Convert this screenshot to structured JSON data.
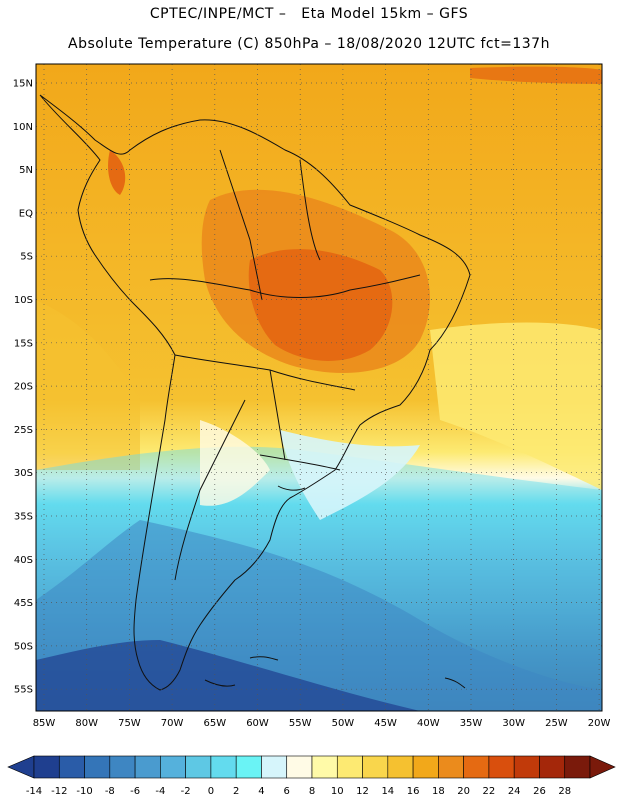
{
  "header": {
    "line1": "CPTEC/INPE/MCT –   Eta Model 15km – GFS",
    "line2": "Absolute Temperature (C) 850hPa – 18/08/2020 12UTC fct=137h"
  },
  "map": {
    "lat_labels": [
      "15N",
      "10N",
      "5N",
      "EQ",
      "5S",
      "10S",
      "15S",
      "20S",
      "25S",
      "30S",
      "35S",
      "40S",
      "45S",
      "50S",
      "55S"
    ],
    "lon_labels": [
      "85W",
      "80W",
      "75W",
      "70W",
      "65W",
      "60W",
      "55W",
      "50W",
      "45W",
      "40W",
      "35W",
      "30W",
      "25W",
      "20W"
    ]
  },
  "colorbar": {
    "labels": [
      "-14",
      "-12",
      "-10",
      "-8",
      "-6",
      "-4",
      "-2",
      "0",
      "2",
      "4",
      "6",
      "8",
      "10",
      "12",
      "14",
      "16",
      "18",
      "20",
      "22",
      "24",
      "26",
      "28"
    ],
    "colors": [
      "#1f3f8f",
      "#2a5ca8",
      "#3475b8",
      "#3e86c2",
      "#4a9bcf",
      "#55b1dc",
      "#5ec8e4",
      "#63dbee",
      "#6af3f5",
      "#d6f5fb",
      "#fffbe6",
      "#fffaa8",
      "#fdea72",
      "#f9d64c",
      "#f5c130",
      "#f2a81a",
      "#eb8b1c",
      "#e56a12",
      "#d94f0d",
      "#c13a0a",
      "#a4270a",
      "#7a1a0b"
    ]
  }
}
